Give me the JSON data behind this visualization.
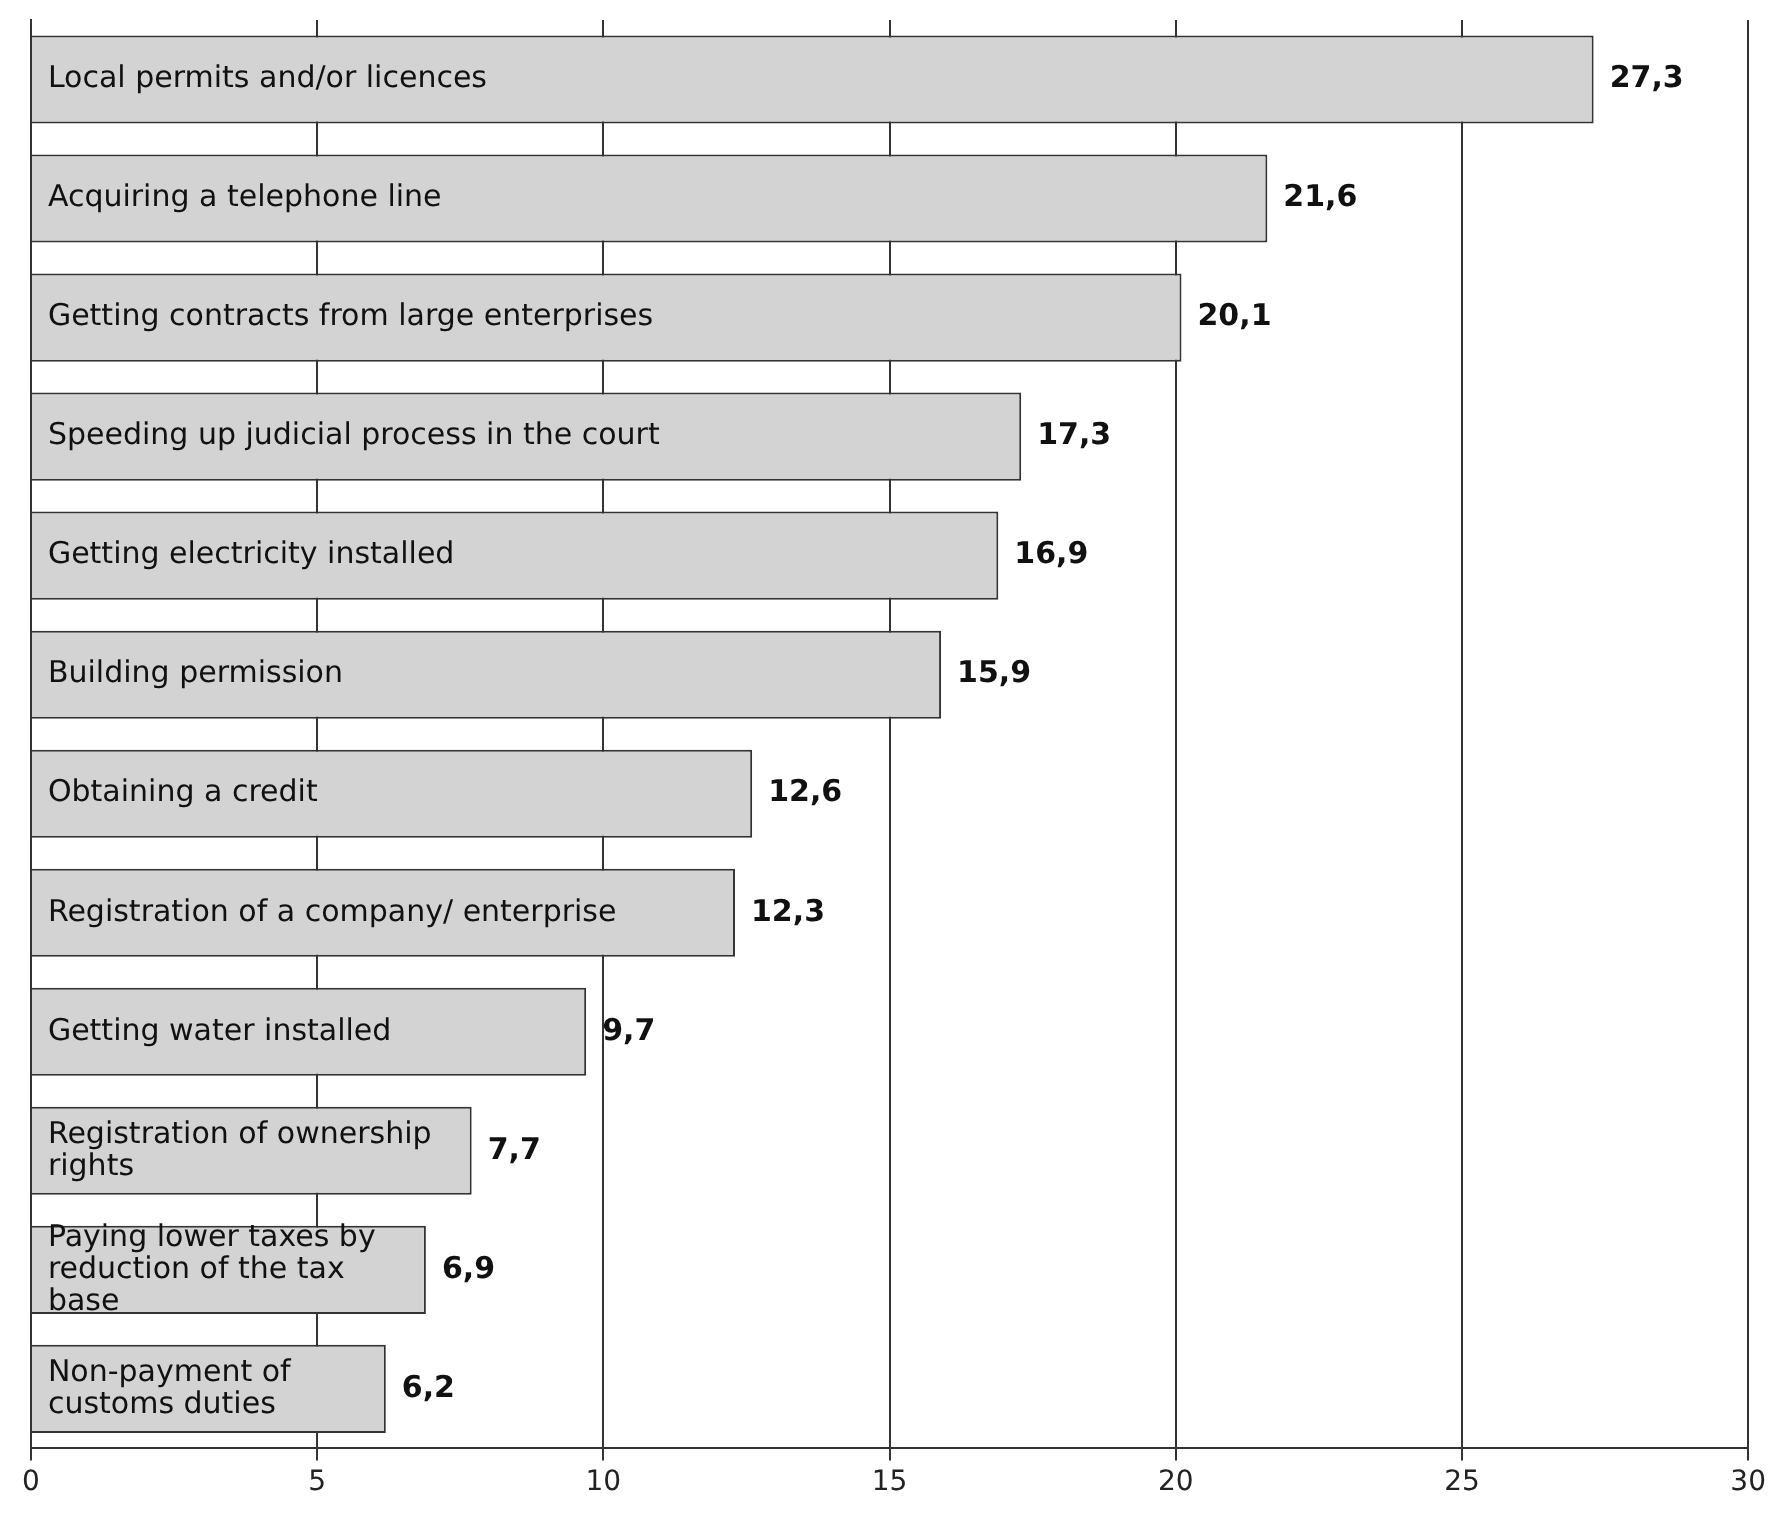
{
  "chart_data": {
    "type": "bar",
    "orientation": "horizontal",
    "categories": [
      "Local permits and/or licences",
      "Acquiring a telephone line",
      "Getting contracts from large enterprises",
      "Speeding up judicial process in the court",
      "Getting electricity installed",
      "Building permission",
      "Obtaining a credit",
      "Registration of a company/ enterprise",
      "Getting water installed",
      "Registration of ownership rights",
      "Paying lower taxes by reduction of the tax base",
      "Non-payment of customs duties"
    ],
    "values": [
      27.3,
      21.6,
      20.1,
      17.3,
      16.9,
      15.9,
      12.6,
      12.3,
      9.7,
      7.7,
      6.9,
      6.2
    ],
    "value_labels": [
      "27,3",
      "21,6",
      "20,1",
      "17,3",
      "16,9",
      "15,9",
      "12,6",
      "12,3",
      "9,7",
      "7,7",
      "6,9",
      "6,2"
    ],
    "color": "#d3d3d3",
    "xlim": [
      0,
      30
    ],
    "xticks": [
      0,
      5,
      10,
      15,
      20,
      25,
      30
    ],
    "grid": "x",
    "legend": false
  }
}
